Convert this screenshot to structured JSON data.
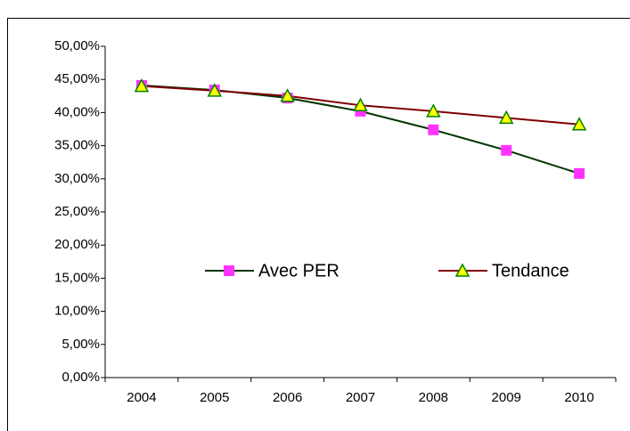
{
  "chart_data": {
    "type": "line",
    "categories": [
      "2004",
      "2005",
      "2006",
      "2007",
      "2008",
      "2009",
      "2010"
    ],
    "series": [
      {
        "name": "Avec PER",
        "color": "#003300",
        "marker_color": "#ff33ff",
        "marker": "square",
        "values": [
          44.1,
          43.4,
          42.2,
          40.2,
          37.4,
          34.3,
          30.8
        ]
      },
      {
        "name": "Tendance",
        "color": "#800000",
        "marker_color": "#ffff00",
        "marker": "triangle",
        "values": [
          44.0,
          43.3,
          42.5,
          41.1,
          40.2,
          39.2,
          38.2
        ]
      }
    ],
    "ylim": [
      0,
      50
    ],
    "yticks": [
      {
        "value": 0,
        "label": "0,00%"
      },
      {
        "value": 5,
        "label": "5,00%"
      },
      {
        "value": 10,
        "label": "10,00%"
      },
      {
        "value": 15,
        "label": "15,00%"
      },
      {
        "value": 20,
        "label": "20,00%"
      },
      {
        "value": 25,
        "label": "25,00%"
      },
      {
        "value": 30,
        "label": "30,00%"
      },
      {
        "value": 35,
        "label": "35,00%"
      },
      {
        "value": 40,
        "label": "40,00%"
      },
      {
        "value": 45,
        "label": "45,00%"
      },
      {
        "value": 50,
        "label": "50,00%"
      }
    ],
    "grid": false
  }
}
